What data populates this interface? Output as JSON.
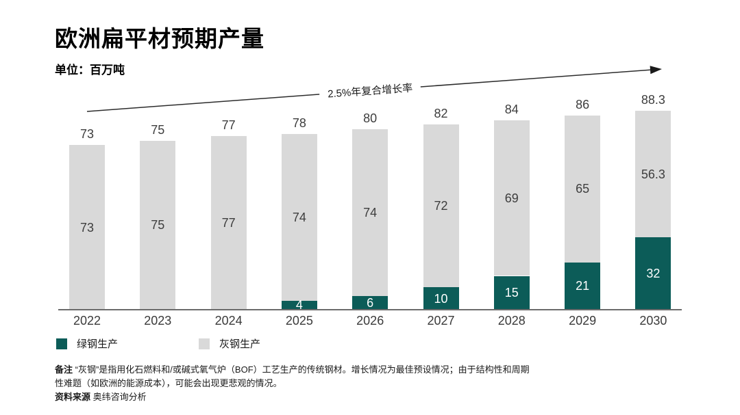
{
  "header": {
    "title": "欧洲扁平材预期产量",
    "unit_label": "单位：百万吨"
  },
  "chart_data": {
    "type": "bar",
    "stacked": true,
    "title": "欧洲扁平材预期产量",
    "ylabel": "百万吨",
    "categories": [
      "2022",
      "2023",
      "2024",
      "2025",
      "2026",
      "2027",
      "2028",
      "2029",
      "2030"
    ],
    "series": [
      {
        "name": "绿钢生产",
        "color": "#0c5c58",
        "values": [
          0,
          0,
          0,
          4,
          6,
          10,
          15,
          21,
          32
        ]
      },
      {
        "name": "灰钢生产",
        "color": "#d9d9d9",
        "values": [
          73,
          75,
          77,
          74,
          74,
          72,
          69,
          65,
          56.3
        ]
      }
    ],
    "totals": [
      73,
      75,
      77,
      78,
      80,
      82,
      84,
      86,
      88.3
    ],
    "annotation": "2.5%年复合增长率",
    "ylim": [
      0,
      95
    ],
    "grid": false,
    "legend_position": "bottom"
  },
  "colors": {
    "green": "#0c5c58",
    "gray": "#d9d9d9",
    "axis": "#6b6b6b",
    "value_label": "#3d3d3d",
    "green_value_label": "#ffffff"
  },
  "footer": {
    "note_label": "备注",
    "note_text": "“灰钢”是指用化石燃料和/或碱式氧气炉（BOF）工艺生产的传统钢材。增长情况为最佳预设情况；由于结构性和周期性难题（如欧洲的能源成本），可能会出现更悲观的情况。",
    "source_label": "资料来源",
    "source_text": "奥纬咨询分析"
  }
}
